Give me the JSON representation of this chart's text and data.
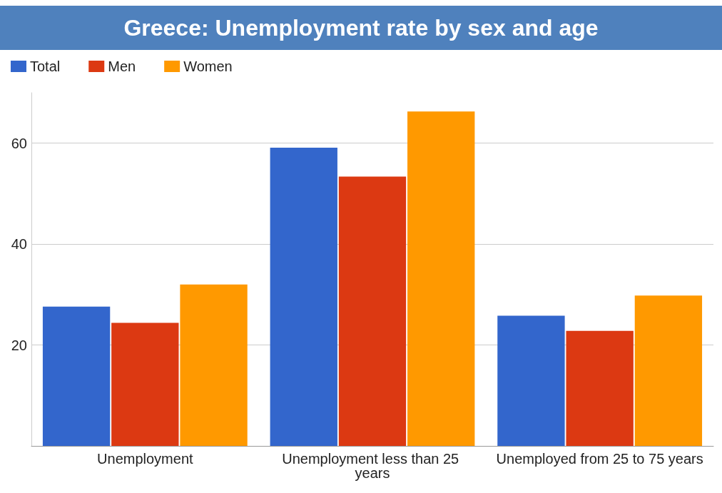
{
  "chart_data": {
    "type": "bar",
    "title": "Greece: Unemployment rate by sex and age",
    "categories": [
      "Unemployment",
      "Unemployment less than 25 years",
      "Unemployed from 25 to 75 years"
    ],
    "series": [
      {
        "name": "Total",
        "color": "#3366cc",
        "values": [
          27.6,
          59.1,
          25.8
        ]
      },
      {
        "name": "Men",
        "color": "#dc3912",
        "values": [
          24.4,
          53.4,
          22.8
        ]
      },
      {
        "name": "Women",
        "color": "#ff9900",
        "values": [
          32.0,
          66.3,
          29.8
        ]
      }
    ],
    "ylim": [
      0,
      70
    ],
    "yticks": [
      20,
      40,
      60
    ],
    "grid": "y",
    "legend": "top left"
  }
}
